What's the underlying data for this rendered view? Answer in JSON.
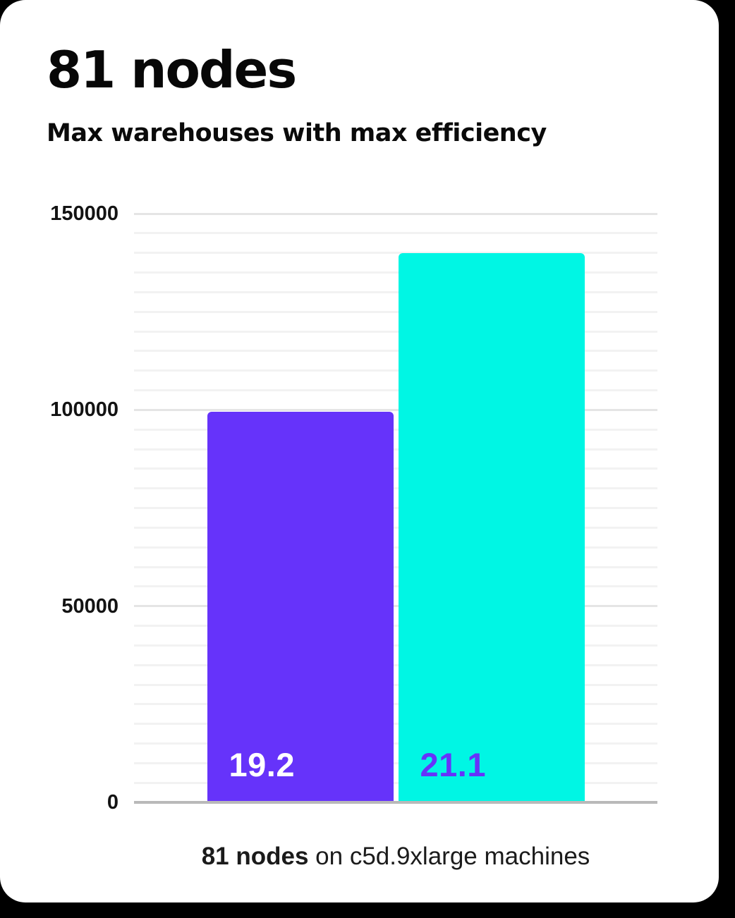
{
  "page": {
    "background_color": "#000000",
    "card_color": "#ffffff"
  },
  "header": {
    "title": "81 nodes",
    "subtitle": "Max warehouses with max efficiency"
  },
  "chart_data": {
    "type": "bar",
    "title": "81 nodes",
    "subtitle": "Max warehouses with max efficiency",
    "categories": [
      "19.2",
      "21.1"
    ],
    "values": [
      99500,
      140000
    ],
    "bars": [
      {
        "label": "19.2",
        "value": 99500,
        "color": "#6633fa",
        "label_color": "#ffffff"
      },
      {
        "label": "21.1",
        "value": 140000,
        "color": "#00f6e4",
        "label_color": "#6633fa"
      }
    ],
    "ylabel": "",
    "xlabel": "",
    "ylim": [
      0,
      150000
    ],
    "yticks": [
      0,
      50000,
      100000,
      150000
    ],
    "ytick_labels": [
      "0",
      "50000",
      "100000",
      "150000"
    ],
    "minor_gridline_step": 5000,
    "grid": "horizontal",
    "legend": "none",
    "value_labels_inside_bars": true,
    "axis_line_color": "#b9b9b9",
    "major_gridline_color": "#e5e5e5",
    "minor_gridline_color": "#f2f2f2"
  },
  "caption": {
    "bold": "81 nodes",
    "rest": " on c5d.9xlarge machines"
  }
}
